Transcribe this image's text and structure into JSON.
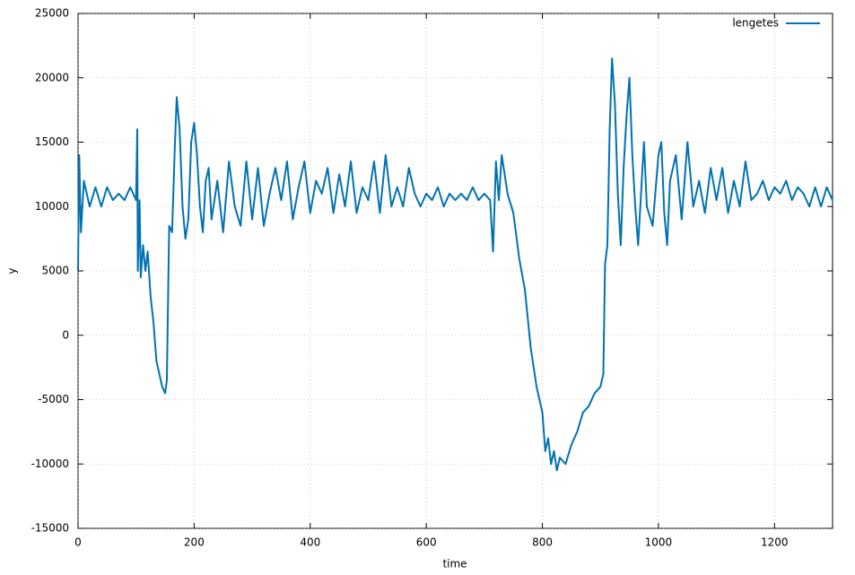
{
  "chart_data": {
    "type": "line",
    "xlabel": "time",
    "ylabel": "y",
    "xlim": [
      0,
      1300
    ],
    "xticks": [
      0,
      200,
      400,
      600,
      800,
      1000,
      1200
    ],
    "ylim": [
      -15000,
      25000
    ],
    "yticks": [
      -15000,
      -10000,
      -5000,
      0,
      5000,
      10000,
      15000,
      20000,
      25000
    ],
    "grid": true,
    "legend": "top-right",
    "x": [
      0,
      2,
      5,
      10,
      20,
      30,
      40,
      50,
      60,
      70,
      80,
      90,
      100,
      102,
      103,
      106,
      108,
      112,
      116,
      120,
      125,
      130,
      135,
      140,
      145,
      150,
      153,
      157,
      162,
      167,
      170,
      175,
      180,
      185,
      190,
      195,
      200,
      205,
      210,
      215,
      220,
      225,
      230,
      240,
      250,
      260,
      270,
      280,
      290,
      300,
      310,
      320,
      330,
      340,
      350,
      360,
      370,
      380,
      390,
      400,
      410,
      420,
      430,
      440,
      450,
      460,
      470,
      480,
      490,
      500,
      510,
      520,
      530,
      540,
      550,
      560,
      570,
      580,
      590,
      600,
      610,
      620,
      630,
      640,
      650,
      660,
      670,
      680,
      690,
      700,
      710,
      715,
      720,
      725,
      730,
      740,
      750,
      760,
      770,
      780,
      790,
      800,
      805,
      810,
      815,
      820,
      825,
      830,
      840,
      850,
      860,
      870,
      880,
      890,
      900,
      905,
      908,
      912,
      916,
      920,
      925,
      930,
      935,
      940,
      945,
      950,
      955,
      960,
      965,
      970,
      975,
      980,
      990,
      1000,
      1005,
      1010,
      1015,
      1020,
      1030,
      1040,
      1050,
      1060,
      1070,
      1080,
      1090,
      1100,
      1110,
      1120,
      1130,
      1140,
      1150,
      1160,
      1170,
      1180,
      1190,
      1200,
      1210,
      1220,
      1230,
      1240,
      1250,
      1260,
      1270,
      1280,
      1290,
      1300
    ],
    "series": [
      {
        "name": "lengetes",
        "color": "#0072b2",
        "values": [
          5000,
          14000,
          8000,
          12000,
          10000,
          11500,
          10000,
          11500,
          10500,
          11000,
          10500,
          11500,
          10500,
          16000,
          5000,
          10500,
          4500,
          7000,
          5000,
          6500,
          3000,
          1000,
          -2000,
          -3000,
          -4000,
          -4500,
          -3500,
          8500,
          8000,
          15000,
          18500,
          16000,
          10000,
          7500,
          9000,
          15000,
          16500,
          14000,
          10000,
          8000,
          12000,
          13000,
          9000,
          12000,
          8000,
          13500,
          10000,
          8500,
          13500,
          9000,
          13000,
          8500,
          11000,
          13000,
          10500,
          13500,
          9000,
          11500,
          13500,
          9500,
          12000,
          11000,
          13000,
          9500,
          12500,
          10000,
          13500,
          9500,
          11500,
          10500,
          13500,
          9500,
          14000,
          10000,
          11500,
          10000,
          13000,
          11000,
          10000,
          11000,
          10500,
          11500,
          10000,
          11000,
          10500,
          11000,
          10500,
          11500,
          10500,
          11000,
          10500,
          6500,
          13500,
          10500,
          14000,
          11000,
          9500,
          6000,
          3500,
          -1000,
          -4000,
          -6000,
          -9000,
          -8000,
          -10000,
          -9000,
          -10500,
          -9500,
          -10000,
          -8500,
          -7500,
          -6000,
          -5500,
          -4500,
          -4000,
          -3000,
          5500,
          7000,
          16000,
          21500,
          18000,
          11000,
          7000,
          13000,
          17000,
          20000,
          14000,
          10000,
          7000,
          11000,
          15000,
          10000,
          8500,
          14000,
          15000,
          9500,
          7000,
          12000,
          14000,
          9000,
          15000,
          10000,
          12000,
          9500,
          13000,
          10500,
          13000,
          9500,
          12000,
          10000,
          13500,
          10500,
          11000,
          12000,
          10500,
          11500,
          11000,
          12000,
          10500,
          11500,
          11000,
          10000,
          11500,
          10000,
          11500,
          10500
        ]
      }
    ]
  }
}
